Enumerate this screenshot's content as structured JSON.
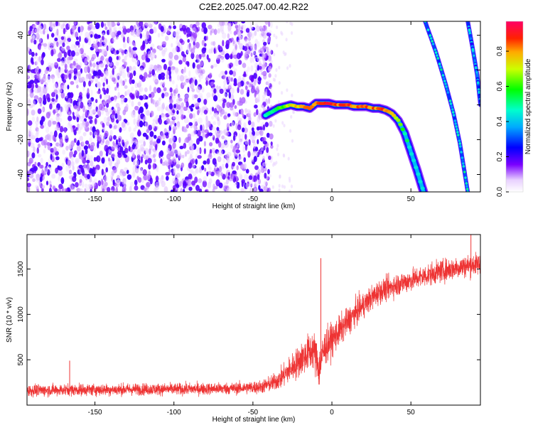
{
  "title": "C2E2.2025.047.00.42.R22",
  "chart_data": [
    {
      "type": "heatmap",
      "xlabel": "Height of straight line (km)",
      "ylabel": "Frequency (Hz)",
      "xlim": [
        -193,
        94
      ],
      "ylim": [
        -50,
        48
      ],
      "x_ticks": [
        -150,
        -100,
        -50,
        0,
        50
      ],
      "y_ticks": [
        -40,
        -20,
        0,
        20,
        40
      ],
      "colorbar": {
        "label": "Normalized spectral amplitude",
        "range": [
          0,
          0.97
        ],
        "ticks": [
          0.0,
          0.2,
          0.4,
          0.6,
          0.8
        ]
      },
      "noise_region": {
        "x_range": [
          -193,
          -38
        ],
        "y_range": [
          -50,
          48
        ],
        "amplitude": 0.05
      },
      "ridge_main": {
        "x": [
          -42,
          -38,
          -34,
          -30,
          -26,
          -22,
          -18,
          -14,
          -10,
          -6,
          -2,
          2,
          6,
          10,
          14,
          18,
          22,
          26,
          30,
          34,
          38,
          42,
          46,
          50,
          54,
          58
        ],
        "y": [
          -6,
          -4,
          -2,
          -1,
          0,
          -1,
          -1,
          -2,
          1,
          1,
          1,
          0,
          0,
          0,
          -1,
          -1,
          -1,
          -2,
          -2,
          -3,
          -5,
          -9,
          -16,
          -27,
          -38,
          -50
        ],
        "amplitude": [
          0.45,
          0.55,
          0.65,
          0.7,
          0.75,
          0.8,
          0.85,
          0.88,
          0.9,
          0.95,
          0.97,
          0.9,
          0.88,
          0.9,
          0.88,
          0.85,
          0.9,
          0.88,
          0.86,
          0.9,
          0.85,
          0.7,
          0.55,
          0.45,
          0.35,
          0.3
        ]
      },
      "ridge_secondary": [
        {
          "x": [
            59,
            66,
            72,
            77,
            81,
            86
          ],
          "y": [
            48,
            30,
            12,
            -5,
            -22,
            -50
          ],
          "amplitude": 0.35
        },
        {
          "x": [
            86,
            89,
            92,
            94
          ],
          "y": [
            48,
            33,
            17,
            0
          ],
          "amplitude": 0.3
        }
      ]
    },
    {
      "type": "line",
      "xlabel": "Height of straight line (km)",
      "ylabel": "SNR (10 * v/v)",
      "xlim": [
        -193,
        94
      ],
      "ylim": [
        0,
        1880
      ],
      "x_ticks": [
        -150,
        -100,
        -50,
        0,
        50
      ],
      "y_ticks": [
        500,
        1000,
        1500
      ],
      "series": [
        {
          "color": "#ee3333",
          "x": [
            -193,
            -180,
            -160,
            -140,
            -120,
            -100,
            -80,
            -60,
            -45,
            -38,
            -32,
            -28,
            -24,
            -20,
            -16,
            -12,
            -10,
            -8,
            -6,
            -4,
            0,
            5,
            10,
            15,
            20,
            25,
            30,
            40,
            50,
            60,
            70,
            80,
            94
          ],
          "y": [
            160,
            165,
            170,
            170,
            175,
            175,
            180,
            185,
            200,
            240,
            300,
            370,
            430,
            500,
            560,
            620,
            520,
            400,
            560,
            650,
            720,
            820,
            920,
            1020,
            1100,
            1180,
            1250,
            1320,
            1380,
            1430,
            1480,
            1520,
            1560
          ],
          "noise_amplitude": [
            80,
            80,
            80,
            80,
            80,
            80,
            80,
            80,
            90,
            110,
            140,
            170,
            200,
            220,
            240,
            260,
            280,
            280,
            260,
            240,
            220,
            200,
            190,
            180,
            170,
            165,
            160,
            155,
            150,
            150,
            150,
            150,
            150
          ]
        }
      ],
      "spikes": [
        {
          "x": -166,
          "y": 490
        },
        {
          "x": -7,
          "y": 1620
        },
        {
          "x": 88,
          "y": 1880
        }
      ]
    }
  ]
}
